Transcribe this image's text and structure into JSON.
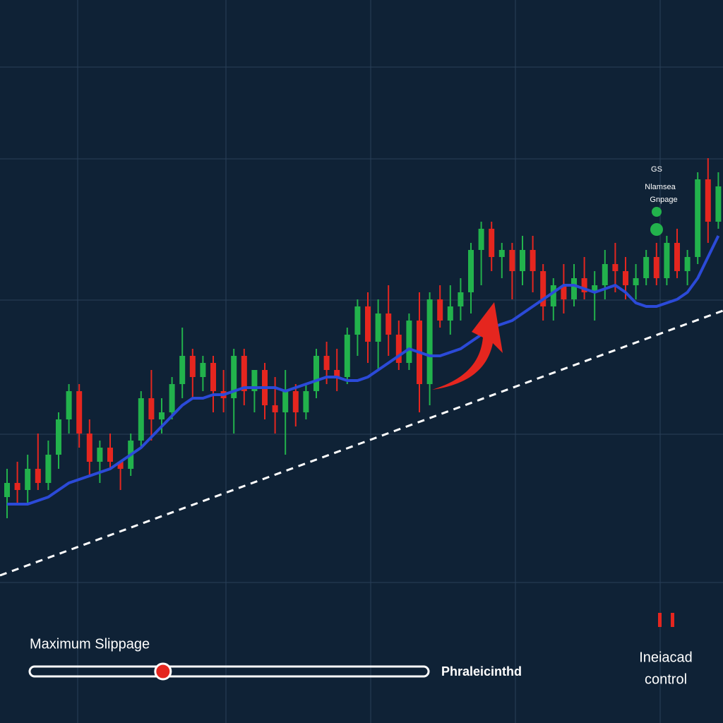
{
  "chart_data": {
    "type": "candlestick",
    "up_color": "#22b24c",
    "down_color": "#e5261f",
    "line_color": "#2b4ad8",
    "ylim": [
      0,
      100
    ],
    "ohlc": [
      [
        32,
        36,
        29,
        34
      ],
      [
        34,
        37,
        31,
        33
      ],
      [
        33,
        38,
        31,
        36
      ],
      [
        36,
        41,
        33,
        34
      ],
      [
        34,
        40,
        33,
        38
      ],
      [
        38,
        44,
        36,
        43
      ],
      [
        43,
        48,
        41,
        47
      ],
      [
        47,
        48,
        39,
        41
      ],
      [
        41,
        43,
        35,
        37
      ],
      [
        37,
        40,
        34,
        39
      ],
      [
        39,
        41,
        36,
        37
      ],
      [
        37,
        37,
        33,
        36
      ],
      [
        36,
        41,
        35,
        40
      ],
      [
        40,
        47,
        39,
        46
      ],
      [
        46,
        50,
        40,
        43
      ],
      [
        43,
        46,
        41,
        44
      ],
      [
        44,
        49,
        43,
        48
      ],
      [
        48,
        56,
        46,
        52
      ],
      [
        52,
        53,
        46,
        49
      ],
      [
        49,
        52,
        47,
        51
      ],
      [
        51,
        52,
        44,
        47
      ],
      [
        47,
        50,
        44,
        46
      ],
      [
        46,
        53,
        41,
        52
      ],
      [
        52,
        53,
        45,
        47
      ],
      [
        47,
        50,
        44,
        50
      ],
      [
        50,
        51,
        43,
        45
      ],
      [
        45,
        49,
        41,
        44
      ],
      [
        44,
        50,
        38,
        47
      ],
      [
        47,
        48,
        42,
        44
      ],
      [
        44,
        48,
        43,
        47
      ],
      [
        47,
        53,
        46,
        52
      ],
      [
        52,
        54,
        48,
        50
      ],
      [
        50,
        53,
        47,
        49
      ],
      [
        49,
        56,
        48,
        55
      ],
      [
        55,
        60,
        52,
        59
      ],
      [
        59,
        61,
        51,
        54
      ],
      [
        54,
        60,
        50,
        58
      ],
      [
        58,
        62,
        52,
        55
      ],
      [
        55,
        57,
        50,
        51
      ],
      [
        51,
        58,
        50,
        57
      ],
      [
        57,
        61,
        44,
        48
      ],
      [
        48,
        61,
        45,
        60
      ],
      [
        60,
        62,
        56,
        57
      ],
      [
        57,
        62,
        55,
        59
      ],
      [
        59,
        63,
        57,
        61
      ],
      [
        61,
        68,
        58,
        67
      ],
      [
        67,
        71,
        62,
        70
      ],
      [
        70,
        71,
        64,
        66
      ],
      [
        66,
        68,
        63,
        67
      ],
      [
        67,
        68,
        60,
        64
      ],
      [
        64,
        69,
        62,
        67
      ],
      [
        67,
        69,
        61,
        64
      ],
      [
        64,
        65,
        57,
        59
      ],
      [
        59,
        63,
        57,
        62
      ],
      [
        62,
        65,
        58,
        60
      ],
      [
        60,
        65,
        59,
        63
      ],
      [
        63,
        66,
        60,
        61
      ],
      [
        61,
        64,
        57,
        62
      ],
      [
        62,
        67,
        60,
        65
      ],
      [
        65,
        68,
        61,
        64
      ],
      [
        64,
        66,
        60,
        62
      ],
      [
        62,
        65,
        60,
        63
      ],
      [
        63,
        67,
        62,
        66
      ],
      [
        66,
        68,
        62,
        63
      ],
      [
        63,
        69,
        62,
        68
      ],
      [
        68,
        70,
        63,
        64
      ],
      [
        64,
        67,
        62,
        66
      ],
      [
        66,
        78,
        65,
        77
      ],
      [
        77,
        80,
        68,
        71
      ],
      [
        71,
        78,
        70,
        76
      ]
    ],
    "line_values": [
      31,
      31,
      31,
      31.5,
      32,
      33,
      34,
      34.5,
      35,
      35.5,
      36,
      37,
      38,
      39,
      40.5,
      42,
      43.5,
      45,
      46,
      46,
      46.5,
      46.5,
      47,
      47.5,
      47.5,
      47.5,
      47.5,
      47,
      47.5,
      48,
      48.5,
      49,
      49,
      48.5,
      48.5,
      49,
      50,
      51,
      52,
      53,
      52.5,
      52,
      52,
      52.5,
      53,
      54,
      55,
      56,
      56.5,
      57,
      58,
      59,
      60,
      61,
      62,
      62,
      61.5,
      61,
      61.5,
      62,
      61,
      59.5,
      59,
      59,
      59.5,
      60,
      61,
      63,
      66,
      69
    ],
    "legend": [
      "GS",
      "Nlamsea",
      "Gnpage"
    ]
  },
  "slider": {
    "label": "Maximum Slippage",
    "value": 33,
    "min": 0,
    "max": 100,
    "value_text": "Phraleicinthd"
  },
  "control": {
    "label_lines": [
      "Ineiacad",
      "control"
    ]
  }
}
